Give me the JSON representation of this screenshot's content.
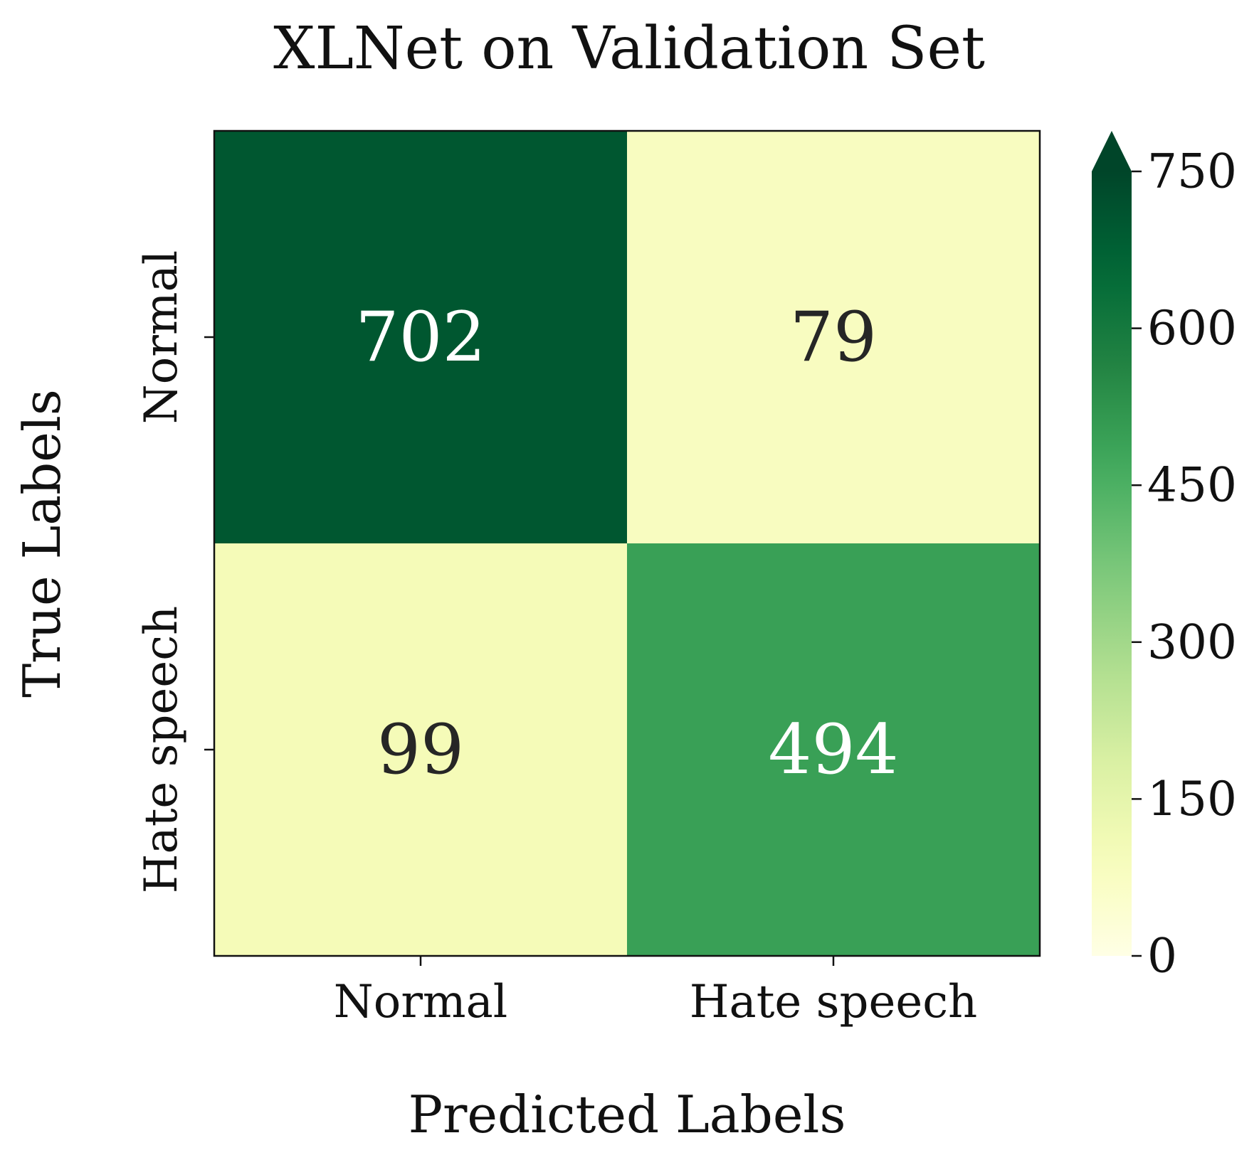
{
  "chart_data": {
    "type": "heatmap",
    "title": "XLNet on Validation Set",
    "xlabel": "Predicted Labels",
    "ylabel": "True Labels",
    "x_categories": [
      "Normal",
      "Hate speech"
    ],
    "y_categories": [
      "Normal",
      "Hate speech"
    ],
    "values": [
      [
        702,
        79
      ],
      [
        99,
        494
      ]
    ],
    "colorbar": {
      "min": 0,
      "max": 750,
      "ticks": [
        "0",
        "150",
        "300",
        "450",
        "600",
        "750"
      ],
      "extend": "max",
      "colormap": "YlGn"
    }
  }
}
